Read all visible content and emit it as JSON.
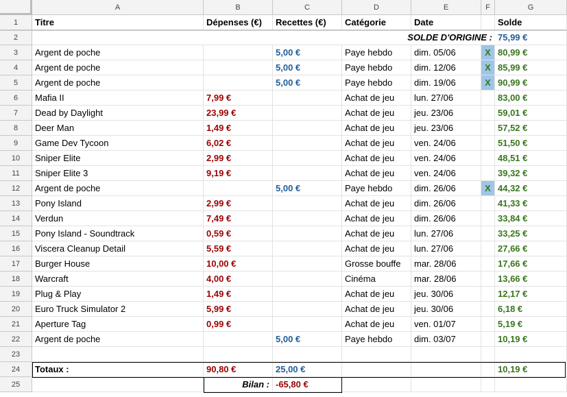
{
  "columns": [
    "A",
    "B",
    "C",
    "D",
    "E",
    "F",
    "G"
  ],
  "headers": [
    "Titre",
    "Dépenses (€)",
    "Recettes (€)",
    "Catégorie",
    "Date",
    "",
    "Solde"
  ],
  "opening": {
    "label": "SOLDE D'ORIGINE :",
    "value": "75,99 €"
  },
  "rows": [
    [
      "Argent de poche",
      "",
      "5,00 €",
      "Paye hebdo",
      "dim. 05/06",
      "X",
      "80,99 €"
    ],
    [
      "Argent de poche",
      "",
      "5,00 €",
      "Paye hebdo",
      "dim. 12/06",
      "X",
      "85,99 €"
    ],
    [
      "Argent de poche",
      "",
      "5,00 €",
      "Paye hebdo",
      "dim. 19/06",
      "X",
      "90,99 €"
    ],
    [
      "Mafia II",
      "7,99 €",
      "",
      "Achat de jeu",
      "lun. 27/06",
      "",
      "83,00 €"
    ],
    [
      "Dead by Daylight",
      "23,99 €",
      "",
      "Achat de jeu",
      "jeu. 23/06",
      "",
      "59,01 €"
    ],
    [
      "Deer Man",
      "1,49 €",
      "",
      "Achat de jeu",
      "jeu. 23/06",
      "",
      "57,52 €"
    ],
    [
      "Game Dev Tycoon",
      "6,02 €",
      "",
      "Achat de jeu",
      "ven. 24/06",
      "",
      "51,50 €"
    ],
    [
      "Sniper Elite",
      "2,99 €",
      "",
      "Achat de jeu",
      "ven. 24/06",
      "",
      "48,51 €"
    ],
    [
      "Sniper Elite 3",
      "9,19 €",
      "",
      "Achat de jeu",
      "ven. 24/06",
      "",
      "39,32 €"
    ],
    [
      "Argent de poche",
      "",
      "5,00 €",
      "Paye hebdo",
      "dim. 26/06",
      "X",
      "44,32 €"
    ],
    [
      "Pony Island",
      "2,99 €",
      "",
      "Achat de jeu",
      "dim. 26/06",
      "",
      "41,33 €"
    ],
    [
      "Verdun",
      "7,49 €",
      "",
      "Achat de jeu",
      "dim. 26/06",
      "",
      "33,84 €"
    ],
    [
      "Pony Island - Soundtrack",
      "0,59 €",
      "",
      "Achat de jeu",
      "lun. 27/06",
      "",
      "33,25 €"
    ],
    [
      "Viscera Cleanup Detail",
      "5,59 €",
      "",
      "Achat de jeu",
      "lun. 27/06",
      "",
      "27,66 €"
    ],
    [
      "Burger House",
      "10,00 €",
      "",
      "Grosse bouffe",
      "mar. 28/06",
      "",
      "17,66 €"
    ],
    [
      "Warcraft",
      "4,00 €",
      "",
      "Cinéma",
      "mar. 28/06",
      "",
      "13,66 €"
    ],
    [
      "Plug & Play",
      "1,49 €",
      "",
      "Achat de jeu",
      "jeu. 30/06",
      "",
      "12,17 €"
    ],
    [
      "Euro Truck Simulator 2",
      "5,99 €",
      "",
      "Achat de jeu",
      "jeu. 30/06",
      "",
      "6,18 €"
    ],
    [
      "Aperture Tag",
      "0,99 €",
      "",
      "Achat de jeu",
      "ven. 01/07",
      "",
      "5,19 €"
    ],
    [
      "Argent de poche",
      "",
      "5,00 €",
      "Paye hebdo",
      "dim. 03/07",
      "",
      "10,19 €"
    ]
  ],
  "totals": {
    "label": "Totaux :",
    "depenses": "90,80 €",
    "recettes": "25,00 €",
    "solde": "10,19 €"
  },
  "bilan": {
    "label": "Bilan :",
    "value": "-65,80 €"
  },
  "row_numbers": [
    "1",
    "2",
    "3",
    "4",
    "5",
    "6",
    "7",
    "8",
    "9",
    "10",
    "11",
    "12",
    "13",
    "14",
    "15",
    "16",
    "17",
    "18",
    "19",
    "20",
    "21",
    "22",
    "23",
    "24",
    "25"
  ],
  "colors": {
    "depense": "#990000",
    "recette": "#1f5c99",
    "solde": "#38761d",
    "flag_bg": "#9fc5e8",
    "header_bg": "#f3f3f3"
  }
}
